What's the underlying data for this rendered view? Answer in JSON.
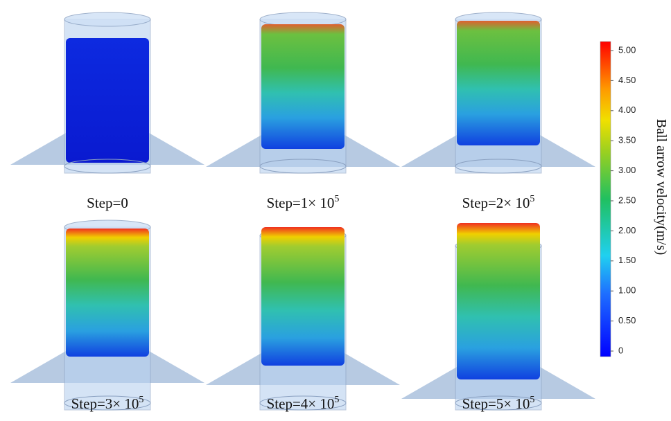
{
  "panels": [
    {
      "label": {
        "base": "Step=0"
      }
    },
    {
      "label": {
        "base": "Step=1× 10",
        "exp": "5"
      }
    },
    {
      "label": {
        "base": "Step=2× 10",
        "exp": "5"
      }
    },
    {
      "label": {
        "base": "Step=3× 10",
        "exp": "5"
      }
    },
    {
      "label": {
        "base": "Step=4× 10",
        "exp": "5"
      }
    },
    {
      "label": {
        "base": "Step=5× 10",
        "exp": "5"
      }
    }
  ],
  "colorbar": {
    "title": "Ball arrow velocity(m/s)",
    "ticks": [
      "5.00",
      "4.50",
      "4.00",
      "3.50",
      "3.00",
      "2.50",
      "2.00",
      "1.50",
      "1.00",
      "0.50",
      "0"
    ]
  }
}
